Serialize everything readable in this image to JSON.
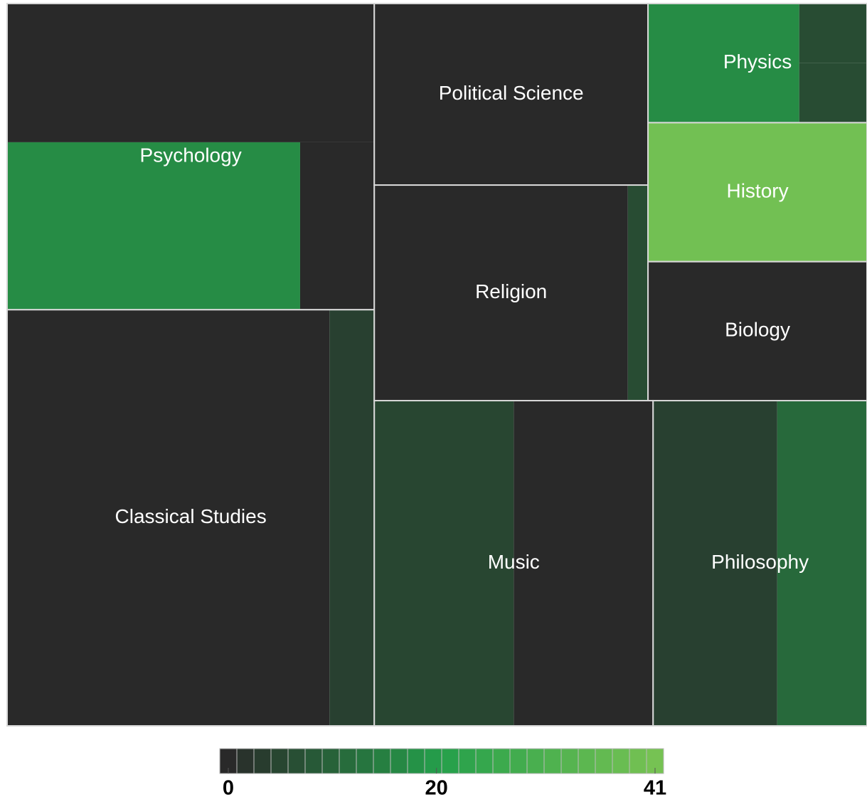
{
  "chart_data": {
    "type": "treemap",
    "groups": [
      {
        "name": "Psychology",
        "children": [
          {
            "value": 8.2,
            "color_value": 0
          },
          {
            "value": 7.9,
            "color_value": 17
          },
          {
            "value": 2.0,
            "color_value": 0
          }
        ]
      },
      {
        "name": "Classical Studies",
        "children": [
          {
            "value": 21.6,
            "color_value": 0
          },
          {
            "value": 3.0,
            "color_value": 4
          }
        ]
      },
      {
        "name": "Political Science",
        "children": [
          {
            "value": 8.0,
            "color_value": 0
          }
        ]
      },
      {
        "name": "Religion",
        "children": [
          {
            "value": 8.8,
            "color_value": 0
          },
          {
            "value": 0.7,
            "color_value": 6
          }
        ]
      },
      {
        "name": "Physics",
        "children": [
          {
            "value": 2.9,
            "color_value": 17
          },
          {
            "value": 0.65,
            "color_value": 6
          },
          {
            "value": 0.65,
            "color_value": 6
          }
        ]
      },
      {
        "name": "History",
        "children": [
          {
            "value": 4.9,
            "color_value": 40
          }
        ]
      },
      {
        "name": "Biology",
        "children": [
          {
            "value": 4.9,
            "color_value": 0
          }
        ]
      },
      {
        "name": "Music",
        "children": [
          {
            "value": 7.3,
            "color_value": 5
          },
          {
            "value": 7.3,
            "color_value": 0
          }
        ]
      },
      {
        "name": "Philosophy",
        "children": [
          {
            "value": 6.5,
            "color_value": 4
          },
          {
            "value": 4.7,
            "color_value": 11
          }
        ]
      }
    ],
    "color_scale": {
      "range": [
        0,
        41
      ],
      "colors": [
        "#292929",
        "#25a04b",
        "#76c253"
      ],
      "ticks": [
        0,
        20,
        41
      ]
    }
  }
}
